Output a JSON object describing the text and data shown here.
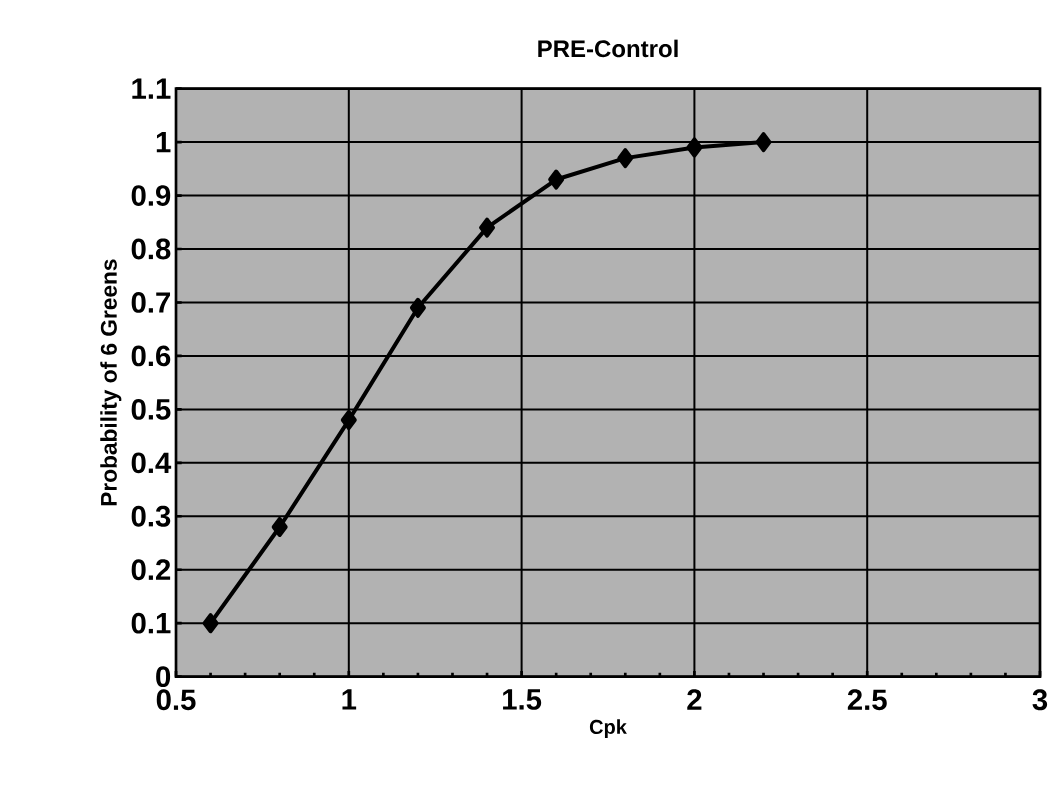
{
  "chart_data": {
    "type": "line",
    "title": "PRE-Control",
    "xlabel": "Cpk",
    "ylabel": "Probability of 6 Greens",
    "x": [
      0.6,
      0.8,
      1.0,
      1.2,
      1.4,
      1.6,
      1.8,
      2.0,
      2.2
    ],
    "series": [
      {
        "color": "#000000",
        "values": [
          0.1,
          0.28,
          0.48,
          0.69,
          0.84,
          0.93,
          0.97,
          0.99,
          1.0
        ]
      }
    ],
    "xlim": [
      0.5,
      3
    ],
    "xticks": [
      0.5,
      1,
      1.5,
      2,
      2.5,
      3
    ],
    "ylim": [
      0,
      1.1
    ],
    "yticks": [
      0,
      0.1,
      0.2,
      0.3,
      0.4,
      0.5,
      0.6,
      0.7,
      0.8,
      0.9,
      1,
      1.1
    ],
    "grid": true,
    "marker": "diamond",
    "line_style": "solid"
  }
}
